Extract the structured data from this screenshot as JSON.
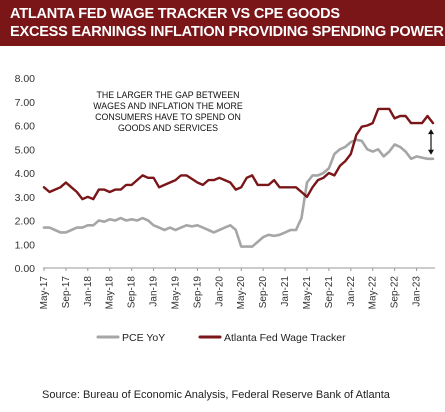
{
  "title": {
    "line1": "ATLANTA FED WAGE TRACKER VS CPE GOODS",
    "line2": "EXCESS EARNINGS INFLATION PROVIDING SPENDING POWER"
  },
  "source": "Source:  Bureau of Economic Analysis, Federal Reserve Bank of Atlanta",
  "chart_data": {
    "type": "line",
    "title": "",
    "xlabel": "",
    "ylabel": "",
    "ylim": [
      0,
      8
    ],
    "yticks": [
      "0.00",
      "1.00",
      "2.00",
      "3.00",
      "4.00",
      "5.00",
      "6.00",
      "7.00",
      "8.00"
    ],
    "x_ticks": [
      "May-17",
      "Sep-17",
      "Jan-18",
      "May-18",
      "Sep-18",
      "Jan-19",
      "May-19",
      "Sep-19",
      "Jan-20",
      "May-20",
      "Sep-20",
      "Jan-21",
      "May-21",
      "Sep-21",
      "Jan-22",
      "May-22",
      "Sep-22",
      "Jan-23"
    ],
    "x": [
      "May-17",
      "Jun-17",
      "Jul-17",
      "Aug-17",
      "Sep-17",
      "Oct-17",
      "Nov-17",
      "Dec-17",
      "Jan-18",
      "Feb-18",
      "Mar-18",
      "Apr-18",
      "May-18",
      "Jun-18",
      "Jul-18",
      "Aug-18",
      "Sep-18",
      "Oct-18",
      "Nov-18",
      "Dec-18",
      "Jan-19",
      "Feb-19",
      "Mar-19",
      "Apr-19",
      "May-19",
      "Jun-19",
      "Jul-19",
      "Aug-19",
      "Sep-19",
      "Oct-19",
      "Nov-19",
      "Dec-19",
      "Jan-20",
      "Feb-20",
      "Mar-20",
      "Apr-20",
      "May-20",
      "Jun-20",
      "Jul-20",
      "Aug-20",
      "Sep-20",
      "Oct-20",
      "Nov-20",
      "Dec-20",
      "Jan-21",
      "Feb-21",
      "Mar-21",
      "Apr-21",
      "May-21",
      "Jun-21",
      "Jul-21",
      "Aug-21",
      "Sep-21",
      "Oct-21",
      "Nov-21",
      "Dec-21",
      "Jan-22",
      "Feb-22",
      "Mar-22",
      "Apr-22",
      "May-22",
      "Jun-22",
      "Jul-22",
      "Aug-22",
      "Sep-22",
      "Oct-22",
      "Nov-22",
      "Dec-22",
      "Jan-23",
      "Feb-23",
      "Mar-23",
      "Apr-23"
    ],
    "series": [
      {
        "name": "PCE YoY",
        "color": "#a6a6a6",
        "values": [
          1.7,
          1.7,
          1.6,
          1.5,
          1.5,
          1.6,
          1.7,
          1.7,
          1.8,
          1.8,
          2.0,
          1.95,
          2.05,
          2.0,
          2.1,
          2.0,
          2.05,
          2.0,
          2.1,
          2.0,
          1.8,
          1.7,
          1.6,
          1.7,
          1.6,
          1.7,
          1.8,
          1.75,
          1.8,
          1.7,
          1.6,
          1.5,
          1.6,
          1.7,
          1.8,
          1.6,
          0.9,
          0.9,
          0.9,
          1.1,
          1.3,
          1.4,
          1.35,
          1.4,
          1.5,
          1.6,
          1.6,
          2.1,
          3.6,
          3.9,
          3.9,
          4.0,
          4.2,
          4.8,
          5.0,
          5.1,
          5.3,
          5.4,
          5.35,
          5.0,
          4.9,
          5.0,
          4.7,
          4.9,
          5.2,
          5.1,
          4.9,
          4.6,
          4.7,
          4.65,
          4.6,
          4.6
        ],
        "style": "solid"
      },
      {
        "name": "Atlanta Fed Wage Tracker",
        "color": "#7a1518",
        "values": [
          3.4,
          3.2,
          3.3,
          3.4,
          3.6,
          3.4,
          3.2,
          2.9,
          3.0,
          2.9,
          3.3,
          3.3,
          3.2,
          3.3,
          3.3,
          3.5,
          3.5,
          3.7,
          3.9,
          3.8,
          3.8,
          3.4,
          3.5,
          3.6,
          3.7,
          3.9,
          3.9,
          3.75,
          3.6,
          3.5,
          3.7,
          3.7,
          3.8,
          3.7,
          3.6,
          3.3,
          3.4,
          3.8,
          3.9,
          3.5,
          3.5,
          3.5,
          3.7,
          3.4,
          3.4,
          3.4,
          3.4,
          3.2,
          3.0,
          3.4,
          3.7,
          3.8,
          4.0,
          3.9,
          4.3,
          4.5,
          4.8,
          5.6,
          5.95,
          6.0,
          6.1,
          6.7,
          6.7,
          6.7,
          6.3,
          6.4,
          6.4,
          6.1,
          6.1,
          6.1,
          6.4,
          6.1
        ],
        "style": "solid"
      }
    ],
    "annotation": {
      "text_lines": [
        "THE LARGER THE GAP BETWEEN",
        "WAGES AND INFLATION THE MORE",
        "CONSUMERS HAVE TO SPEND ON",
        "GOODS AND SERVICES"
      ],
      "arrow": "double-headed vertical arrow at the latest month between the two series"
    },
    "legend": {
      "placement": "bottom",
      "labels": [
        "PCE YoY",
        "Atlanta Fed Wage Tracker"
      ]
    },
    "grid": false
  }
}
